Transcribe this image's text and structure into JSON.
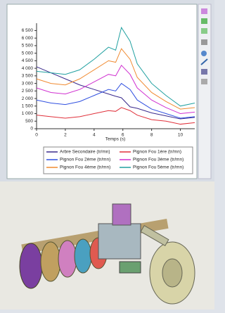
{
  "chart_data": {
    "type": "line",
    "x_label": "Temps (s)",
    "x": [
      0,
      1,
      2,
      3,
      4,
      5,
      5.5,
      5.9,
      6.5,
      7,
      8,
      9,
      10,
      11
    ],
    "xlim": [
      0,
      11
    ],
    "xticks": [
      0,
      2,
      4,
      6,
      8,
      10
    ],
    "ylim": [
      0,
      6800
    ],
    "yticks": [
      0,
      500,
      {
        "value": 1000,
        "label": "1 000"
      },
      {
        "value": 1500,
        "label": "1 500"
      },
      {
        "value": 2000,
        "label": "2 000"
      },
      {
        "value": 2500,
        "label": "2 500"
      },
      {
        "value": 3000,
        "label": "3 000"
      },
      {
        "value": 3500,
        "label": "3 500"
      },
      {
        "value": 4000,
        "label": "4 000"
      },
      {
        "value": 4500,
        "label": "4 500"
      },
      {
        "value": 5000,
        "label": "5 000"
      },
      {
        "value": 5500,
        "label": "5 500"
      },
      {
        "value": 6000,
        "label": "6 000"
      },
      {
        "value": 6500,
        "label": "6 500"
      }
    ],
    "series": [
      {
        "name": "Arbre Secondaire (tr/mn)",
        "color": "#3a2a8c",
        "values": [
          4100,
          3700,
          3300,
          2900,
          2600,
          2300,
          2150,
          2050,
          1450,
          1350,
          1050,
          850,
          650,
          750
        ]
      },
      {
        "name": "Pignon Fou 1ère (tr/mn)",
        "color": "#e0303a",
        "values": [
          900,
          800,
          700,
          800,
          1000,
          1200,
          1150,
          1400,
          1200,
          900,
          600,
          500,
          300,
          400
        ]
      },
      {
        "name": "Pignon Fou 2ème (tr/mn)",
        "color": "#3050e0",
        "values": [
          1900,
          1700,
          1600,
          1800,
          2200,
          2600,
          2500,
          3000,
          2600,
          1900,
          1300,
          1000,
          700,
          800
        ]
      },
      {
        "name": "Pignon Fou 3ème (tr/mn)",
        "color": "#d030d0",
        "values": [
          2700,
          2400,
          2300,
          2600,
          3100,
          3600,
          3500,
          4200,
          3600,
          2700,
          1900,
          1400,
          1000,
          1100
        ]
      },
      {
        "name": "Pignon Fou 4ème (tr/mn)",
        "color": "#f08a30",
        "values": [
          3300,
          3000,
          2900,
          3300,
          3900,
          4500,
          4400,
          5300,
          4600,
          3400,
          2400,
          1800,
          1300,
          1400
        ]
      },
      {
        "name": "Pignon Fou 5ème (tr/mn)",
        "color": "#20a0a0",
        "values": [
          3800,
          3700,
          3600,
          3900,
          4600,
          5400,
          5200,
          6700,
          5800,
          4300,
          3000,
          2200,
          1500,
          1700
        ]
      }
    ]
  }
}
